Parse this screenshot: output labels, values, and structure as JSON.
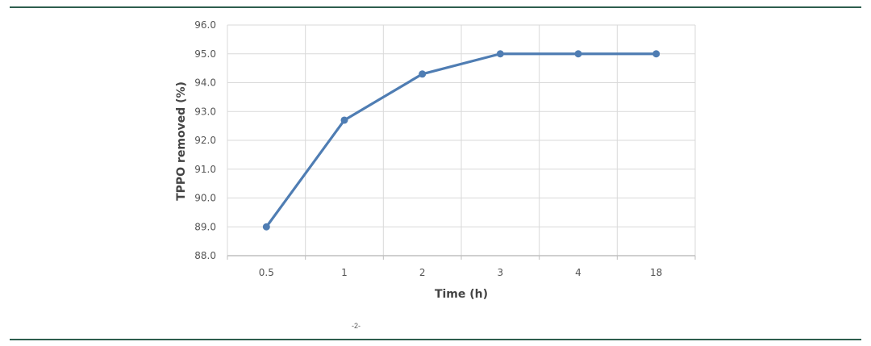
{
  "colors": {
    "rule": "#2e5e4e",
    "series": "#4f7db3",
    "grid": "#d9d9d9",
    "axis": "#bfbfbf"
  },
  "footer_mark": "-2-",
  "chart_data": {
    "type": "line",
    "title": "",
    "xlabel": "Time (h)",
    "ylabel": "TPPO removed (%)",
    "categories": [
      "0.5",
      "1",
      "2",
      "3",
      "4",
      "18"
    ],
    "values": [
      89.0,
      92.7,
      94.3,
      95.0,
      95.0,
      95.0
    ],
    "ylim": [
      88.0,
      96.0
    ],
    "yticks": [
      "88.0",
      "89.0",
      "90.0",
      "91.0",
      "92.0",
      "93.0",
      "94.0",
      "95.0",
      "96.0"
    ],
    "grid": true,
    "markers": true,
    "legend": "none"
  }
}
